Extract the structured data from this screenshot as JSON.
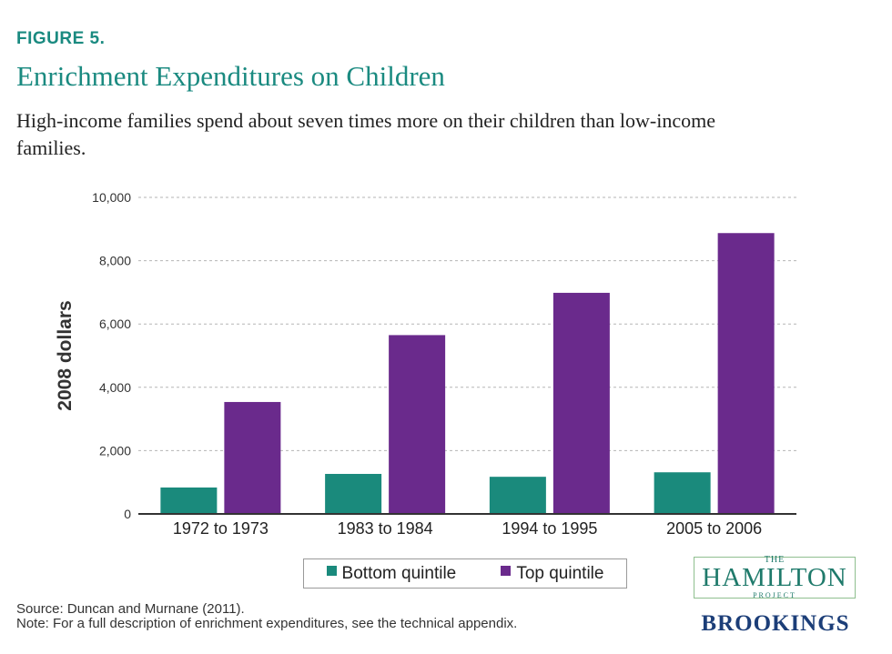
{
  "header": {
    "figure_label": "FIGURE 5.",
    "title": "Enrichment Expenditures on Children",
    "subtitle": "High-income families spend about seven times more on their children than low-income families."
  },
  "chart_data": {
    "type": "bar",
    "categories": [
      "1972 to 1973",
      "1983 to 1984",
      "1994 to 1995",
      "2005 to 2006"
    ],
    "series": [
      {
        "name": "Bottom quintile",
        "values": [
          835,
          1264,
          1173,
          1315
        ],
        "color": "#1a8a7c"
      },
      {
        "name": "Top quintile",
        "values": [
          3536,
          5649,
          6985,
          8872
        ],
        "color": "#6a2a8c"
      }
    ],
    "ylabel": "2008 dollars",
    "xlabel": "",
    "ylim": [
      0,
      10000
    ],
    "yticks": [
      0,
      2000,
      4000,
      6000,
      8000,
      10000
    ],
    "ytick_labels": [
      "0",
      "2,000",
      "4,000",
      "6,000",
      "8,000",
      "10,000"
    ],
    "grid": true,
    "legend_position": "bottom-center"
  },
  "footer": {
    "source": "Source: Duncan and Murnane (2011).",
    "note": "Note: For a full description of enrichment expenditures, see the technical appendix."
  },
  "logos": {
    "hamilton_the": "THE",
    "hamilton_main": "HAMILTON",
    "hamilton_project": "PROJECT",
    "brookings": "BROOKINGS"
  }
}
